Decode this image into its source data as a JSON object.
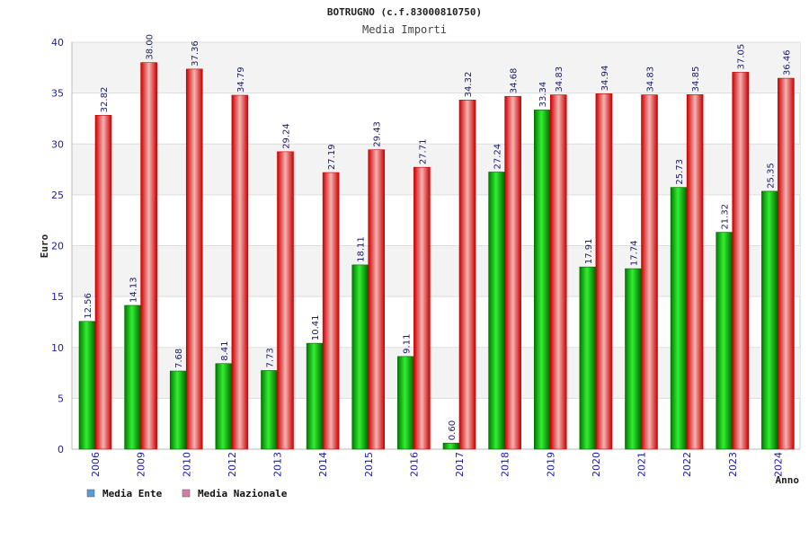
{
  "chart_data": {
    "type": "bar",
    "title": "BOTRUGNO (c.f.83000810750)",
    "subtitle": "Media Importi",
    "xlabel": "Anno",
    "ylabel": "Euro",
    "ylim": [
      0,
      40
    ],
    "yticks": [
      0,
      5,
      10,
      15,
      20,
      25,
      30,
      35,
      40
    ],
    "grid": true,
    "legend_position": "bottom-left",
    "categories": [
      "2006",
      "2009",
      "2010",
      "2012",
      "2013",
      "2014",
      "2015",
      "2016",
      "2017",
      "2018",
      "2019",
      "2020",
      "2021",
      "2022",
      "2023",
      "2024"
    ],
    "series": [
      {
        "name": "Media Ente",
        "color": "#00aa00",
        "legend_color": "#5b9bd5",
        "values": [
          12.56,
          14.13,
          7.68,
          8.41,
          7.73,
          10.41,
          18.11,
          9.11,
          0.6,
          27.24,
          33.34,
          17.91,
          17.74,
          25.73,
          21.32,
          25.35
        ],
        "labels": [
          "12.56",
          "14.13",
          "7.68",
          "8.41",
          "7.73",
          "10.41",
          "18.11",
          "9.11",
          "0.60",
          "27.24",
          "33.34",
          "17.91",
          "17.74",
          "25.73",
          "21.32",
          "25.35"
        ]
      },
      {
        "name": "Media Nazionale",
        "color": "#ee1111",
        "legend_color": "#d67ba8",
        "values": [
          32.82,
          38.0,
          37.36,
          34.79,
          29.24,
          27.19,
          29.43,
          27.71,
          34.32,
          34.68,
          34.83,
          34.94,
          34.83,
          34.85,
          37.05,
          36.46
        ],
        "labels": [
          "32.82",
          "38.00",
          "37.36",
          "34.79",
          "29.24",
          "27.19",
          "29.43",
          "27.71",
          "34.32",
          "34.68",
          "34.83",
          "34.94",
          "34.83",
          "34.85",
          "37.05",
          "36.46"
        ]
      }
    ]
  }
}
